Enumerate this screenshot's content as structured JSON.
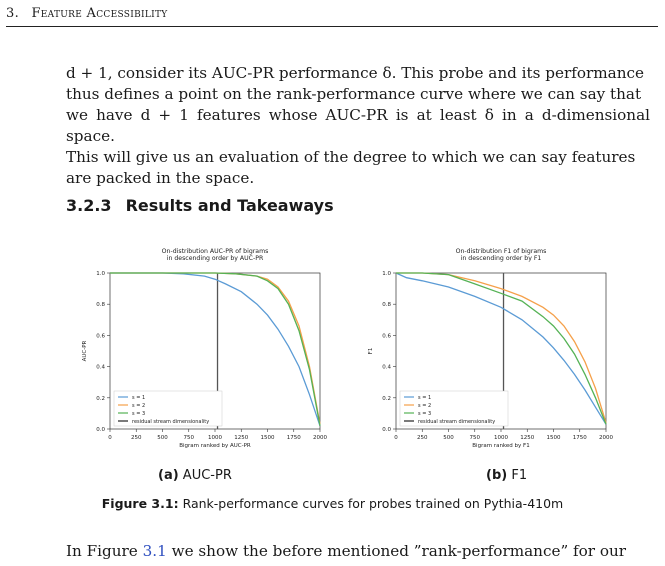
{
  "header": {
    "number": "3.",
    "title": "Feature Accessibility"
  },
  "paragraph": {
    "line1": "d + 1, consider its AUC-PR performance δ. This probe and its performance",
    "line2": "thus defines a point on the rank-performance curve where we can say that",
    "line3": "we have d + 1 features whose AUC-PR is at least δ in a d-dimensional space.",
    "line4": "This will give us an evaluation of the degree to which we can say features",
    "line5": "are packed in the space."
  },
  "section": {
    "number": "3.2.3",
    "title": "Results and Takeaways"
  },
  "subcaptions": {
    "a_label": "(a)",
    "a_text": "AUC-PR",
    "b_label": "(b)",
    "b_text": "F1"
  },
  "figure_caption": {
    "label": "Figure 3.1:",
    "text": "Rank-performance curves for probes trained on Pythia-410m"
  },
  "bottom_text": {
    "pre": "In Figure ",
    "ref": "3.1",
    "post": " we show the before mentioned ”rank-performance” for our"
  },
  "colors": {
    "s1": "#5b9bd5",
    "s2": "#f5a04a",
    "s3": "#55b255",
    "vline": "#555555"
  },
  "chart_data": [
    {
      "type": "line",
      "title": "On-distribution AUC-PR of bigrams in descending order by AUC-PR",
      "title_lines": [
        "On-distribution AUC-PR of bigrams",
        "in descending order by AUC-PR"
      ],
      "xlabel": "Bigram ranked by AUC-PR",
      "ylabel": "AUC-PR",
      "xlim": [
        0,
        2000
      ],
      "ylim": [
        0,
        1.0
      ],
      "xticks": [
        0,
        250,
        500,
        750,
        1000,
        1250,
        1500,
        1750,
        2000
      ],
      "yticks": [
        0.0,
        0.2,
        0.4,
        0.6,
        0.8,
        1.0
      ],
      "vline": 1024,
      "legend": [
        "s = 1",
        "s = 2",
        "s = 3",
        "residual stream dimensionality"
      ],
      "legend_position": "lower-left",
      "series": [
        {
          "name": "s = 1",
          "x": [
            0,
            200,
            500,
            700,
            900,
            1000,
            1100,
            1250,
            1400,
            1500,
            1600,
            1700,
            1800,
            1900,
            2000
          ],
          "y": [
            1.0,
            1.0,
            1.0,
            0.995,
            0.98,
            0.96,
            0.93,
            0.88,
            0.8,
            0.73,
            0.64,
            0.53,
            0.4,
            0.22,
            0.02
          ]
        },
        {
          "name": "s = 2",
          "x": [
            0,
            500,
            1000,
            1200,
            1400,
            1500,
            1600,
            1700,
            1800,
            1900,
            2000
          ],
          "y": [
            1.0,
            1.0,
            1.0,
            0.995,
            0.98,
            0.96,
            0.91,
            0.82,
            0.66,
            0.4,
            0.03
          ]
        },
        {
          "name": "s = 3",
          "x": [
            0,
            500,
            1000,
            1200,
            1400,
            1500,
            1600,
            1700,
            1800,
            1900,
            2000
          ],
          "y": [
            1.0,
            1.0,
            1.0,
            0.995,
            0.98,
            0.95,
            0.9,
            0.8,
            0.63,
            0.38,
            0.02
          ]
        }
      ]
    },
    {
      "type": "line",
      "title": "On-distribution F1 of bigrams in descending order by F1",
      "title_lines": [
        "On-distribution F1 of bigrams",
        "in descending order by F1"
      ],
      "xlabel": "Bigram ranked by F1",
      "ylabel": "F1",
      "xlim": [
        0,
        2000
      ],
      "ylim": [
        0,
        1.0
      ],
      "xticks": [
        0,
        250,
        500,
        750,
        1000,
        1250,
        1500,
        1750,
        2000
      ],
      "yticks": [
        0.0,
        0.2,
        0.4,
        0.6,
        0.8,
        1.0
      ],
      "vline": 1024,
      "legend": [
        "s = 1",
        "s = 2",
        "s = 3",
        "residual stream dimensionality"
      ],
      "legend_position": "lower-left",
      "series": [
        {
          "name": "s = 1",
          "x": [
            0,
            100,
            250,
            500,
            750,
            1000,
            1200,
            1400,
            1500,
            1600,
            1700,
            1800,
            1900,
            2000
          ],
          "y": [
            1.0,
            0.97,
            0.95,
            0.91,
            0.85,
            0.78,
            0.7,
            0.59,
            0.52,
            0.44,
            0.35,
            0.25,
            0.14,
            0.03
          ]
        },
        {
          "name": "s = 2",
          "x": [
            0,
            250,
            500,
            750,
            1000,
            1200,
            1400,
            1500,
            1600,
            1700,
            1800,
            1900,
            2000
          ],
          "y": [
            1.0,
            1.0,
            0.99,
            0.95,
            0.9,
            0.85,
            0.78,
            0.73,
            0.66,
            0.56,
            0.43,
            0.26,
            0.04
          ]
        },
        {
          "name": "s = 3",
          "x": [
            0,
            250,
            500,
            750,
            1000,
            1200,
            1400,
            1500,
            1600,
            1700,
            1800,
            1900,
            2000
          ],
          "y": [
            1.0,
            1.0,
            0.99,
            0.93,
            0.87,
            0.82,
            0.72,
            0.66,
            0.58,
            0.48,
            0.35,
            0.2,
            0.03
          ]
        }
      ]
    }
  ]
}
